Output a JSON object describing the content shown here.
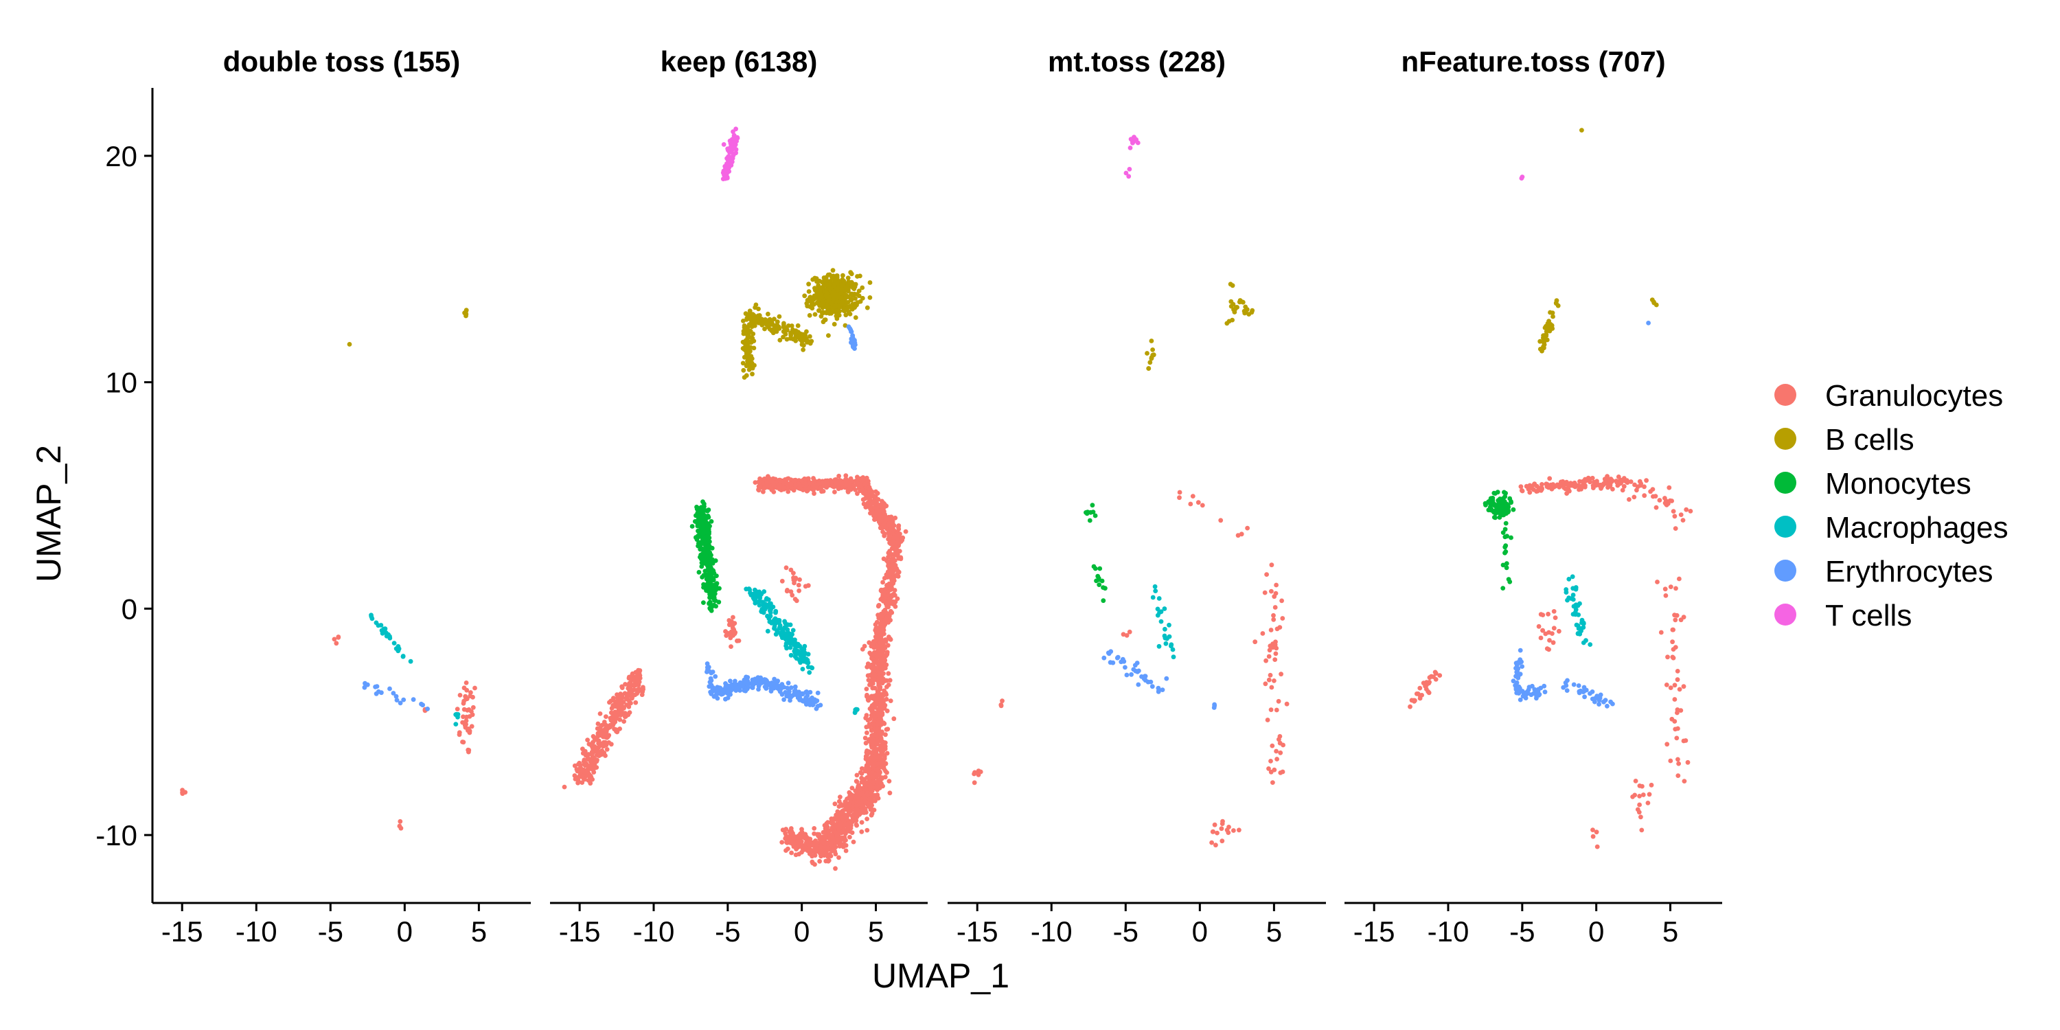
{
  "chart_data": {
    "type": "scatter",
    "facets": [
      "double toss (155)",
      "keep (6138)",
      "mt.toss (228)",
      "nFeature.toss (707)"
    ],
    "xlabel": "UMAP_1",
    "ylabel": "UMAP_2",
    "xlim": [
      -17,
      8.5
    ],
    "ylim": [
      -13,
      23
    ],
    "xticks": [
      -15,
      -10,
      -5,
      0,
      5
    ],
    "xtick_labels": [
      "-15",
      "-10",
      "-5",
      "0",
      "5"
    ],
    "yticks": [
      -10,
      0,
      10,
      20
    ],
    "ytick_labels": [
      "-10",
      "0",
      "10",
      "20"
    ],
    "grid": false,
    "legend_position": "right",
    "legend": [
      {
        "name": "Granulocytes",
        "color": "#F8766D"
      },
      {
        "name": "B cells",
        "color": "#B79F00"
      },
      {
        "name": "Monocytes",
        "color": "#00BA38"
      },
      {
        "name": "Macrophages",
        "color": "#00BFC4"
      },
      {
        "name": "Erythrocytes",
        "color": "#619CFF"
      },
      {
        "name": "T cells",
        "color": "#F564E3"
      }
    ],
    "panels": [
      {
        "title": "double toss (155)",
        "clusters": [
          {
            "cell_type": "Granulocytes",
            "shape": "blob",
            "cx": -15,
            "cy": -8,
            "sx": 0.15,
            "sy": 0.3,
            "n": 4
          },
          {
            "cell_type": "Granulocytes",
            "shape": "blob",
            "cx": -4.6,
            "cy": -1.4,
            "sx": 0.2,
            "sy": 0.2,
            "n": 4
          },
          {
            "cell_type": "Granulocytes",
            "shape": "blob",
            "cx": 4.2,
            "cy": -4.8,
            "sx": 0.7,
            "sy": 1.8,
            "n": 40
          },
          {
            "cell_type": "Granulocytes",
            "shape": "blob",
            "cx": 1.5,
            "cy": -4.5,
            "sx": 0.2,
            "sy": 0.2,
            "n": 5
          },
          {
            "cell_type": "Granulocytes",
            "shape": "blob",
            "cx": -0.2,
            "cy": -9.6,
            "sx": 0.15,
            "sy": 0.3,
            "n": 3
          },
          {
            "cell_type": "B cells",
            "shape": "blob",
            "cx": 4.1,
            "cy": 13.1,
            "sx": 0.2,
            "sy": 0.2,
            "n": 6
          },
          {
            "cell_type": "B cells",
            "shape": "blob",
            "cx": -3.7,
            "cy": 11.7,
            "sx": 0.05,
            "sy": 0.05,
            "n": 1
          },
          {
            "cell_type": "Macrophages",
            "shape": "line",
            "x1": -2.3,
            "y1": -0.3,
            "x2": 0.5,
            "y2": -2.5,
            "spread": 0.15,
            "n": 26
          },
          {
            "cell_type": "Macrophages",
            "shape": "blob",
            "cx": 3.5,
            "cy": -4.7,
            "sx": 0.3,
            "sy": 0.2,
            "n": 5
          },
          {
            "cell_type": "Erythrocytes",
            "shape": "line",
            "x1": -2.8,
            "y1": -3.4,
            "x2": 1.5,
            "y2": -4.4,
            "spread": 0.25,
            "n": 18
          }
        ]
      },
      {
        "title": "keep (6138)",
        "clusters": [
          {
            "cell_type": "T cells",
            "shape": "line",
            "x1": -5.2,
            "y1": 19.0,
            "x2": -4.5,
            "y2": 21.0,
            "spread": 0.25,
            "n": 100
          },
          {
            "cell_type": "B cells",
            "shape": "blob",
            "cx": 2.2,
            "cy": 13.8,
            "sx": 1.6,
            "sy": 0.9,
            "n": 380
          },
          {
            "cell_type": "B cells",
            "shape": "line",
            "x1": -3.5,
            "y1": 13.0,
            "x2": 0.5,
            "y2": 11.8,
            "spread": 0.35,
            "n": 120
          },
          {
            "cell_type": "B cells",
            "shape": "line",
            "x1": -3.6,
            "y1": 13.0,
            "x2": -3.6,
            "y2": 10.5,
            "spread": 0.35,
            "n": 110
          },
          {
            "cell_type": "Erythrocytes",
            "shape": "line",
            "x1": 3.2,
            "y1": 12.5,
            "x2": 3.6,
            "y2": 11.5,
            "spread": 0.15,
            "n": 22
          },
          {
            "cell_type": "Granulocytes",
            "shape": "line",
            "x1": -3.0,
            "y1": 5.5,
            "x2": 4.5,
            "y2": 5.5,
            "spread": 0.3,
            "n": 380
          },
          {
            "cell_type": "Granulocytes",
            "shape": "line",
            "x1": 4.5,
            "y1": 5.0,
            "x2": 6.5,
            "y2": 3.0,
            "spread": 0.5,
            "n": 220
          },
          {
            "cell_type": "Granulocytes",
            "shape": "line",
            "x1": 6.5,
            "y1": 3.0,
            "x2": 5.2,
            "y2": -1.5,
            "spread": 0.5,
            "n": 240
          },
          {
            "cell_type": "Granulocytes",
            "shape": "line",
            "x1": 5.2,
            "y1": -1.5,
            "x2": 5.0,
            "y2": -7.5,
            "spread": 0.7,
            "n": 520
          },
          {
            "cell_type": "Granulocytes",
            "shape": "line",
            "x1": 5.0,
            "y1": -7.5,
            "x2": 1.5,
            "y2": -10.6,
            "spread": 0.8,
            "n": 480
          },
          {
            "cell_type": "Granulocytes",
            "shape": "line",
            "x1": 1.5,
            "y1": -10.6,
            "x2": -1.0,
            "y2": -10.2,
            "spread": 0.5,
            "n": 160
          },
          {
            "cell_type": "Granulocytes",
            "shape": "line",
            "x1": -15.0,
            "y1": -7.5,
            "x2": -11.0,
            "y2": -3.0,
            "spread": 0.6,
            "n": 330
          },
          {
            "cell_type": "Granulocytes",
            "shape": "blob",
            "cx": -4.8,
            "cy": -1.0,
            "sx": 0.4,
            "sy": 0.6,
            "n": 25
          },
          {
            "cell_type": "Granulocytes",
            "shape": "blob",
            "cx": -0.5,
            "cy": 1.0,
            "sx": 0.8,
            "sy": 0.8,
            "n": 20
          },
          {
            "cell_type": "Monocytes",
            "shape": "line",
            "x1": -6.8,
            "y1": 4.5,
            "x2": -6.0,
            "y2": 0.2,
            "spread": 0.5,
            "n": 300
          },
          {
            "cell_type": "Macrophages",
            "shape": "line",
            "x1": -3.5,
            "y1": 1.0,
            "x2": 0.5,
            "y2": -2.5,
            "spread": 0.4,
            "n": 170
          },
          {
            "cell_type": "Macrophages",
            "shape": "blob",
            "cx": 3.7,
            "cy": -4.5,
            "sx": 0.2,
            "sy": 0.2,
            "n": 6
          },
          {
            "cell_type": "Erythrocytes",
            "shape": "line",
            "x1": -6.0,
            "y1": -3.8,
            "x2": -2.8,
            "y2": -3.2,
            "spread": 0.3,
            "n": 110
          },
          {
            "cell_type": "Erythrocytes",
            "shape": "line",
            "x1": -2.8,
            "y1": -3.2,
            "x2": 1.2,
            "y2": -4.2,
            "spread": 0.3,
            "n": 110
          },
          {
            "cell_type": "Erythrocytes",
            "shape": "line",
            "x1": -6.2,
            "y1": -2.5,
            "x2": -6.0,
            "y2": -3.8,
            "spread": 0.25,
            "n": 20
          }
        ]
      },
      {
        "title": "mt.toss (228)",
        "clusters": [
          {
            "cell_type": "T cells",
            "shape": "blob",
            "cx": -4.4,
            "cy": 20.6,
            "sx": 0.25,
            "sy": 0.4,
            "n": 10
          },
          {
            "cell_type": "T cells",
            "shape": "blob",
            "cx": -4.8,
            "cy": 19.2,
            "sx": 0.2,
            "sy": 0.4,
            "n": 3
          },
          {
            "cell_type": "B cells",
            "shape": "blob",
            "cx": 2.8,
            "cy": 13.4,
            "sx": 0.8,
            "sy": 0.8,
            "n": 25
          },
          {
            "cell_type": "B cells",
            "shape": "blob",
            "cx": -3.3,
            "cy": 11.3,
            "sx": 0.4,
            "sy": 0.7,
            "n": 10
          },
          {
            "cell_type": "Granulocytes",
            "shape": "line",
            "x1": -2.0,
            "y1": 5.2,
            "x2": 3.0,
            "y2": 3.5,
            "spread": 0.6,
            "n": 10
          },
          {
            "cell_type": "Granulocytes",
            "shape": "line",
            "x1": 5.0,
            "y1": 2.0,
            "x2": 5.0,
            "y2": -8.5,
            "spread": 0.8,
            "n": 55
          },
          {
            "cell_type": "Granulocytes",
            "shape": "blob",
            "cx": 1.5,
            "cy": -9.8,
            "sx": 1.2,
            "sy": 0.8,
            "n": 15
          },
          {
            "cell_type": "Granulocytes",
            "shape": "blob",
            "cx": -15.0,
            "cy": -7.3,
            "sx": 0.35,
            "sy": 0.5,
            "n": 7
          },
          {
            "cell_type": "Granulocytes",
            "shape": "blob",
            "cx": -13.3,
            "cy": -4.2,
            "sx": 0.2,
            "sy": 0.3,
            "n": 3
          },
          {
            "cell_type": "Granulocytes",
            "shape": "blob",
            "cx": -4.8,
            "cy": -1.0,
            "sx": 0.25,
            "sy": 0.3,
            "n": 3
          },
          {
            "cell_type": "Monocytes",
            "shape": "blob",
            "cx": -7.2,
            "cy": 4.2,
            "sx": 0.6,
            "sy": 0.4,
            "n": 8
          },
          {
            "cell_type": "Monocytes",
            "shape": "line",
            "x1": -7.0,
            "y1": 2.0,
            "x2": -6.5,
            "y2": 0.5,
            "spread": 0.4,
            "n": 12
          },
          {
            "cell_type": "Macrophages",
            "shape": "line",
            "x1": -3.5,
            "y1": 1.2,
            "x2": -1.8,
            "y2": -2.0,
            "spread": 0.45,
            "n": 22
          },
          {
            "cell_type": "Erythrocytes",
            "shape": "line",
            "x1": -6.3,
            "y1": -2.0,
            "x2": -2.5,
            "y2": -3.6,
            "spread": 0.4,
            "n": 35
          },
          {
            "cell_type": "Erythrocytes",
            "shape": "blob",
            "cx": 1.0,
            "cy": -4.3,
            "sx": 0.2,
            "sy": 0.1,
            "n": 3
          }
        ]
      },
      {
        "title": "nFeature.toss (707)",
        "clusters": [
          {
            "cell_type": "B cells",
            "shape": "blob",
            "cx": -1.0,
            "cy": 21.1,
            "sx": 0.05,
            "sy": 0.05,
            "n": 1
          },
          {
            "cell_type": "B cells",
            "shape": "line",
            "x1": -3.8,
            "y1": 11.3,
            "x2": -2.7,
            "y2": 13.5,
            "spread": 0.25,
            "n": 35
          },
          {
            "cell_type": "B cells",
            "shape": "blob",
            "cx": 3.9,
            "cy": 13.5,
            "sx": 0.15,
            "sy": 0.3,
            "n": 4
          },
          {
            "cell_type": "T cells",
            "shape": "blob",
            "cx": -5.0,
            "cy": 19.0,
            "sx": 0.1,
            "sy": 0.1,
            "n": 2
          },
          {
            "cell_type": "Erythrocytes",
            "shape": "blob",
            "cx": 3.5,
            "cy": 12.6,
            "sx": 0.05,
            "sy": 0.05,
            "n": 1
          },
          {
            "cell_type": "Granulocytes",
            "shape": "line",
            "x1": -5.0,
            "y1": 5.3,
            "x2": 2.0,
            "y2": 5.6,
            "spread": 0.25,
            "n": 130
          },
          {
            "cell_type": "Granulocytes",
            "shape": "line",
            "x1": 2.0,
            "y1": 5.5,
            "x2": 6.5,
            "y2": 4.0,
            "spread": 0.6,
            "n": 35
          },
          {
            "cell_type": "Granulocytes",
            "shape": "line",
            "x1": 5.0,
            "y1": 1.0,
            "x2": 5.5,
            "y2": -8.0,
            "spread": 0.9,
            "n": 45
          },
          {
            "cell_type": "Granulocytes",
            "shape": "blob",
            "cx": 3.0,
            "cy": -8.5,
            "sx": 0.8,
            "sy": 1.2,
            "n": 15
          },
          {
            "cell_type": "Granulocytes",
            "shape": "line",
            "x1": -12.5,
            "y1": -4.3,
            "x2": -10.8,
            "y2": -2.8,
            "spread": 0.3,
            "n": 28
          },
          {
            "cell_type": "Granulocytes",
            "shape": "blob",
            "cx": -0.1,
            "cy": -9.8,
            "sx": 0.2,
            "sy": 0.5,
            "n": 4
          },
          {
            "cell_type": "Granulocytes",
            "shape": "blob",
            "cx": -3.5,
            "cy": -1.0,
            "sx": 1.0,
            "sy": 1.0,
            "n": 18
          },
          {
            "cell_type": "Monocytes",
            "shape": "blob",
            "cx": -6.5,
            "cy": 4.5,
            "sx": 0.8,
            "sy": 0.5,
            "n": 110
          },
          {
            "cell_type": "Monocytes",
            "shape": "line",
            "x1": -6.2,
            "y1": 3.5,
            "x2": -6.0,
            "y2": 1.0,
            "spread": 0.3,
            "n": 15
          },
          {
            "cell_type": "Macrophages",
            "shape": "line",
            "x1": -2.0,
            "y1": 1.4,
            "x2": -0.8,
            "y2": -1.5,
            "spread": 0.4,
            "n": 40
          },
          {
            "cell_type": "Erythrocytes",
            "shape": "line",
            "x1": -5.2,
            "y1": -2.0,
            "x2": -5.4,
            "y2": -3.8,
            "spread": 0.25,
            "n": 25
          },
          {
            "cell_type": "Erythrocytes",
            "shape": "line",
            "x1": -5.4,
            "y1": -3.8,
            "x2": -3.5,
            "y2": -3.6,
            "spread": 0.25,
            "n": 30
          },
          {
            "cell_type": "Erythrocytes",
            "shape": "line",
            "x1": -2.5,
            "y1": -3.2,
            "x2": 1.2,
            "y2": -4.3,
            "spread": 0.3,
            "n": 35
          }
        ]
      }
    ]
  }
}
